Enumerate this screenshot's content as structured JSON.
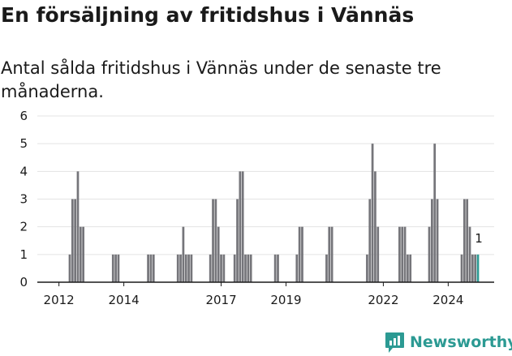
{
  "title": "En försäljning av fritidshus i Vännäs",
  "subtitle": "Antal sålda fritidshus i Vännäs under de senaste tre månaderna.",
  "brand": {
    "name": "Newsworthy",
    "icon": "newsworthy-logo-icon",
    "color": "#2c9a93"
  },
  "colors": {
    "bar": "#75757a",
    "highlight": "#2c9a93",
    "grid": "#e3e3e3",
    "axis": "#1a1a1a"
  },
  "chart_data": {
    "type": "bar",
    "title": "En försäljning av fritidshus i Vännäs",
    "subtitle": "Antal sålda fritidshus i Vännäs under de senaste tre månaderna.",
    "xlabel": "",
    "ylabel": "",
    "ylim": [
      0,
      6
    ],
    "yticks": [
      0,
      1,
      2,
      3,
      4,
      5,
      6
    ],
    "xlim": [
      "2011-05",
      "2025-06"
    ],
    "xtick_labels": [
      "2012",
      "2014",
      "2017",
      "2019",
      "2022",
      "2024"
    ],
    "grid": true,
    "legend": "none",
    "annotation": {
      "x": "2024-12",
      "label": "1"
    },
    "x": [
      "2012-05",
      "2012-06",
      "2012-07",
      "2012-08",
      "2012-09",
      "2012-10",
      "2012-11",
      "2013-09",
      "2013-10",
      "2013-11",
      "2014-10",
      "2014-11",
      "2014-12",
      "2015-09",
      "2015-10",
      "2015-11",
      "2015-12",
      "2016-01",
      "2016-02",
      "2016-09",
      "2016-10",
      "2016-11",
      "2016-12",
      "2017-01",
      "2017-02",
      "2017-06",
      "2017-07",
      "2017-08",
      "2017-09",
      "2017-10",
      "2017-11",
      "2017-12",
      "2018-09",
      "2018-10",
      "2019-05",
      "2019-06",
      "2019-07",
      "2020-04",
      "2020-05",
      "2020-06",
      "2021-07",
      "2021-08",
      "2021-09",
      "2021-10",
      "2021-11",
      "2022-07",
      "2022-08",
      "2022-09",
      "2022-10",
      "2022-11",
      "2023-06",
      "2023-07",
      "2023-08",
      "2023-09",
      "2024-06",
      "2024-07",
      "2024-08",
      "2024-09",
      "2024-10",
      "2024-11",
      "2024-12"
    ],
    "values": [
      1,
      3,
      3,
      4,
      2,
      2,
      0,
      1,
      1,
      1,
      1,
      1,
      1,
      1,
      1,
      2,
      1,
      1,
      1,
      1,
      3,
      3,
      2,
      1,
      1,
      1,
      3,
      4,
      4,
      1,
      1,
      1,
      1,
      1,
      1,
      2,
      2,
      1,
      2,
      2,
      1,
      3,
      5,
      4,
      2,
      2,
      2,
      2,
      1,
      1,
      2,
      3,
      5,
      3,
      1,
      3,
      3,
      2,
      1,
      1,
      1
    ]
  }
}
